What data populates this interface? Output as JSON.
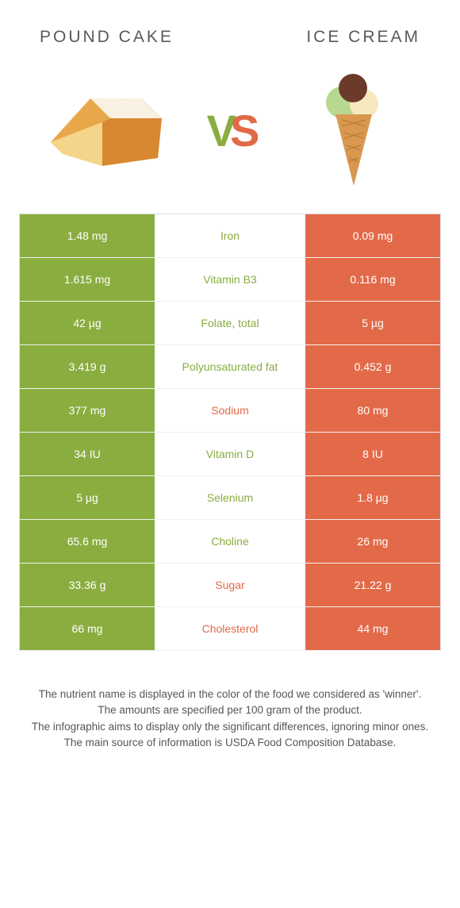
{
  "header": {
    "left_title": "Pound cake",
    "right_title": "Ice cream"
  },
  "vs": {
    "v": "V",
    "s": "S"
  },
  "colors": {
    "green": "#8aad3f",
    "red": "#e36a49",
    "text_green": "#8aad3f",
    "text_red": "#e06947"
  },
  "rows": [
    {
      "left": "1.48 mg",
      "nutrient": "Iron",
      "winner": "green",
      "right": "0.09 mg"
    },
    {
      "left": "1.615 mg",
      "nutrient": "Vitamin B3",
      "winner": "green",
      "right": "0.116 mg"
    },
    {
      "left": "42 µg",
      "nutrient": "Folate, total",
      "winner": "green",
      "right": "5 µg"
    },
    {
      "left": "3.419 g",
      "nutrient": "Polyunsaturated fat",
      "winner": "green",
      "right": "0.452 g"
    },
    {
      "left": "377 mg",
      "nutrient": "Sodium",
      "winner": "red",
      "right": "80 mg"
    },
    {
      "left": "34 IU",
      "nutrient": "Vitamin D",
      "winner": "green",
      "right": "8 IU"
    },
    {
      "left": "5 µg",
      "nutrient": "Selenium",
      "winner": "green",
      "right": "1.8 µg"
    },
    {
      "left": "65.6 mg",
      "nutrient": "Choline",
      "winner": "green",
      "right": "26 mg"
    },
    {
      "left": "33.36 g",
      "nutrient": "Sugar",
      "winner": "red",
      "right": "21.22 g"
    },
    {
      "left": "66 mg",
      "nutrient": "Cholesterol",
      "winner": "red",
      "right": "44 mg"
    }
  ],
  "footer": {
    "line1": "The nutrient name is displayed in the color of the food we considered as 'winner'.",
    "line2": "The amounts are specified per 100 gram of the product.",
    "line3": "The infographic aims to display only the significant differences, ignoring minor ones.",
    "line4": "The main source of information is USDA Food Composition Database."
  }
}
